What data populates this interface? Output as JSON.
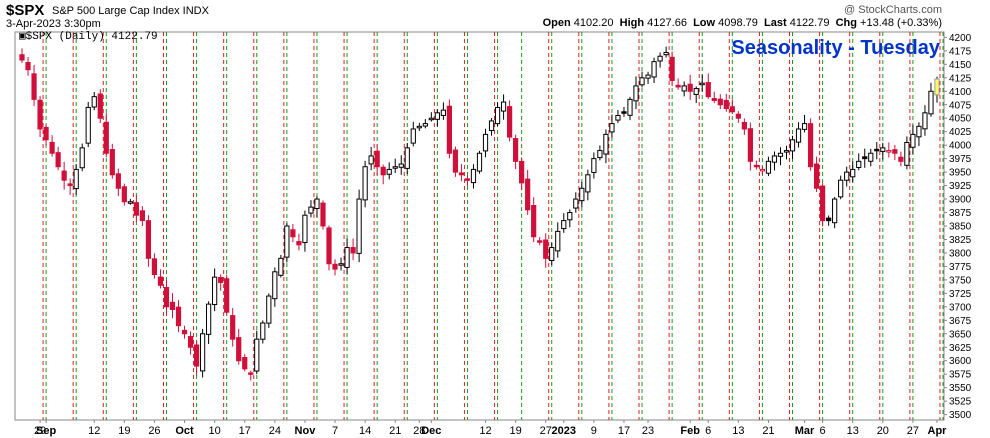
{
  "header": {
    "symbol": "$SPX",
    "name": "S&P 500 Large Cap Index  INDX",
    "date": "3-Apr-2023 3:30pm",
    "copyright": "@ StockCharts.com",
    "open_label": "Open",
    "open": "4102.20",
    "high_label": "High",
    "high": "4127.66",
    "low_label": "Low",
    "low": "4098.79",
    "last_label": "Last",
    "last": "4122.79",
    "chg_label": "Chg",
    "chg": "+13.48 (+0.33%)"
  },
  "chart_data": {
    "type": "candlestick",
    "legend": "$SPX (Daily) 4122.79",
    "annotation": "Seasonality - Tuesday",
    "ylim": [
      3490,
      4210
    ],
    "y_ticks": [
      3500,
      3525,
      3550,
      3575,
      3600,
      3625,
      3650,
      3675,
      3700,
      3725,
      3750,
      3775,
      3800,
      3825,
      3850,
      3875,
      3900,
      3925,
      3950,
      3975,
      4000,
      4025,
      4050,
      4075,
      4100,
      4125,
      4150,
      4175,
      4200
    ],
    "x_labels": [
      {
        "label": "29",
        "i": 3
      },
      {
        "label": "Sep",
        "i": 4,
        "bold": true
      },
      {
        "label": "12",
        "i": 12
      },
      {
        "label": "19",
        "i": 17
      },
      {
        "label": "26",
        "i": 22
      },
      {
        "label": "Oct",
        "i": 27,
        "bold": true
      },
      {
        "label": "10",
        "i": 32
      },
      {
        "label": "17",
        "i": 37
      },
      {
        "label": "24",
        "i": 42
      },
      {
        "label": "Nov",
        "i": 47,
        "bold": true
      },
      {
        "label": "7",
        "i": 52
      },
      {
        "label": "14",
        "i": 57
      },
      {
        "label": "21",
        "i": 62
      },
      {
        "label": "28",
        "i": 66
      },
      {
        "label": "Dec",
        "i": 68,
        "bold": true
      },
      {
        "label": "12",
        "i": 77
      },
      {
        "label": "19",
        "i": 82
      },
      {
        "label": "27",
        "i": 87
      },
      {
        "label": "2023",
        "i": 90,
        "bold": true
      },
      {
        "label": "9",
        "i": 95
      },
      {
        "label": "17",
        "i": 100
      },
      {
        "label": "23",
        "i": 104
      },
      {
        "label": "Feb",
        "i": 111,
        "bold": true
      },
      {
        "label": "6",
        "i": 114
      },
      {
        "label": "13",
        "i": 119
      },
      {
        "label": "21",
        "i": 124
      },
      {
        "label": "Mar",
        "i": 130,
        "bold": true
      },
      {
        "label": "6",
        "i": 133
      },
      {
        "label": "13",
        "i": 138
      },
      {
        "label": "20",
        "i": 143
      },
      {
        "label": "27",
        "i": 148
      },
      {
        "label": "Apr",
        "i": 152,
        "bold": true
      }
    ],
    "tuesdays_green": [
      4,
      9,
      14,
      19,
      24,
      29,
      34,
      39,
      44,
      49,
      54,
      59,
      64,
      69,
      74,
      79,
      83,
      88,
      93,
      98,
      103,
      108,
      113,
      118,
      123,
      128,
      133,
      138,
      143,
      148,
      153
    ],
    "mondays_red": [
      3,
      8,
      13,
      18,
      23,
      28,
      33,
      38,
      43,
      48,
      53,
      58,
      63,
      68,
      73,
      78,
      87,
      92,
      97,
      102,
      107,
      112,
      117,
      122,
      127,
      132,
      137,
      142,
      147,
      152
    ],
    "closes": [
      4158,
      4140,
      4085,
      4030,
      4010,
      3985,
      3960,
      3935,
      3925,
      3955,
      3995,
      4070,
      4090,
      4050,
      3985,
      3945,
      3920,
      3895,
      3895,
      3870,
      3860,
      3790,
      3760,
      3740,
      3700,
      3695,
      3665,
      3650,
      3625,
      3590,
      3650,
      3705,
      3755,
      3745,
      3690,
      3640,
      3600,
      3585,
      3575,
      3640,
      3670,
      3720,
      3765,
      3790,
      3850,
      3830,
      3815,
      3870,
      3885,
      3900,
      3850,
      3780,
      3770,
      3780,
      3810,
      3800,
      3900,
      3960,
      3980,
      3960,
      3945,
      3955,
      3960,
      3965,
      3995,
      4030,
      4035,
      4040,
      4050,
      4060,
      4065,
      3985,
      3950,
      3945,
      3935,
      3955,
      3985,
      4020,
      4045,
      4070,
      4080,
      4015,
      3970,
      3930,
      3880,
      3830,
      3820,
      3790,
      3810,
      3840,
      3860,
      3875,
      3900,
      3920,
      3945,
      3975,
      3990,
      4020,
      4040,
      4055,
      4060,
      4085,
      4110,
      4125,
      4130,
      4155,
      4165,
      4172,
      4120,
      4108,
      4110,
      4100,
      4105,
      4115,
      4090,
      4083,
      4075,
      4068,
      4062,
      4050,
      4030,
      3970,
      3960,
      3955,
      3970,
      3980,
      3985,
      3990,
      4010,
      4030,
      4040,
      3960,
      3920,
      3860,
      3860,
      3900,
      3935,
      3950,
      3955,
      3970,
      3975,
      3985,
      3990,
      3995,
      3990,
      3985,
      3970,
      4005,
      4020,
      4035,
      4060,
      4100,
      4122.79
    ],
    "dates_in_range": "2022-08-26 to 2023-04-03"
  }
}
